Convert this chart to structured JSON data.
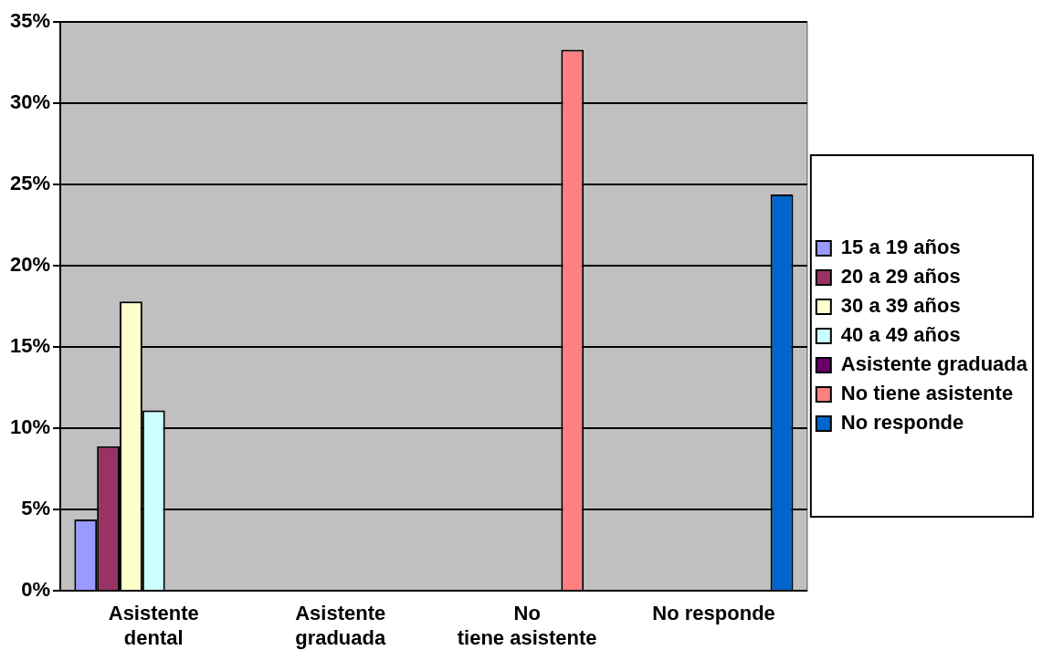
{
  "chart_data": {
    "type": "bar",
    "categories": [
      "Asistente dental",
      "Asistente graduada",
      "No tiene asistente",
      "No responde"
    ],
    "series": [
      {
        "name": "15 a 19 años",
        "color": "#9999ff",
        "values": [
          4.4,
          null,
          null,
          null
        ]
      },
      {
        "name": "20 a 29 años",
        "color": "#993366",
        "values": [
          8.9,
          null,
          null,
          null
        ]
      },
      {
        "name": "30 a 39 años",
        "color": "#ffffcc",
        "values": [
          17.8,
          null,
          null,
          null
        ]
      },
      {
        "name": "40 a 49 años",
        "color": "#ccffff",
        "values": [
          11.1,
          null,
          null,
          null
        ]
      },
      {
        "name": "Asistente graduada",
        "color": "#660066",
        "values": [
          null,
          0,
          null,
          null
        ]
      },
      {
        "name": "No tiene asistente",
        "color": "#ff8080",
        "values": [
          null,
          null,
          33.3,
          null
        ]
      },
      {
        "name": "No responde",
        "color": "#0066cc",
        "values": [
          null,
          null,
          null,
          24.4
        ]
      }
    ],
    "ylim": [
      0,
      35
    ],
    "yticks": [
      {
        "value": 0,
        "label": "0%"
      },
      {
        "value": 5,
        "label": "5%"
      },
      {
        "value": 10,
        "label": "10%"
      },
      {
        "value": 15,
        "label": "15%"
      },
      {
        "value": 20,
        "label": "20%"
      },
      {
        "value": 25,
        "label": "25%"
      },
      {
        "value": 30,
        "label": "30%"
      },
      {
        "value": 35,
        "label": "35%"
      }
    ],
    "grid": "y",
    "legend": "right"
  }
}
